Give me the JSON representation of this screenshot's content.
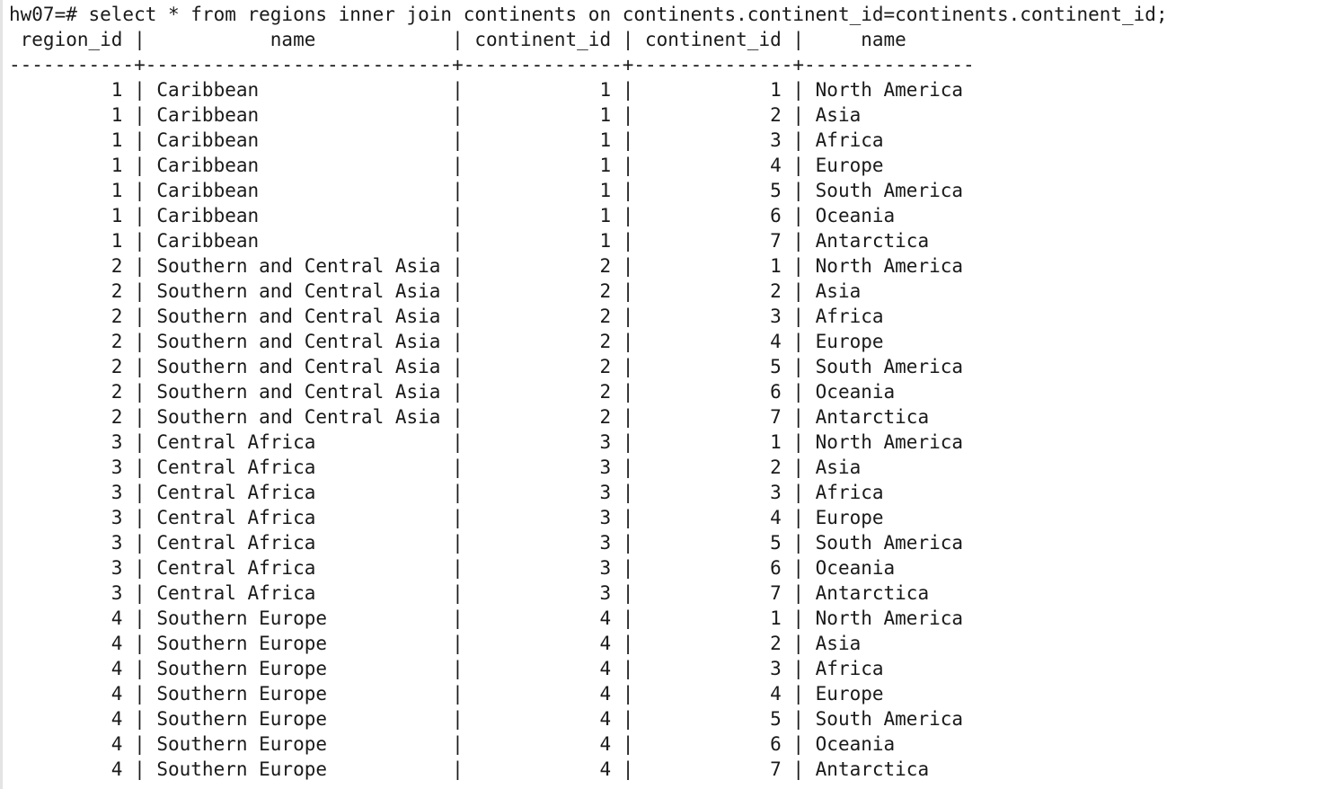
{
  "terminal": {
    "prompt": "hw07=# select * from regions inner join continents on continents.continent_id=continents.continent_id;",
    "header_row": " region_id |           name            | continent_id | continent_id |     name",
    "separator_row": "-----------+---------------------------+--------------+--------------+---------------"
  },
  "result": {
    "columns": [
      "region_id",
      "name",
      "continent_id",
      "continent_id",
      "name"
    ],
    "rows": [
      [
        1,
        "Caribbean",
        1,
        1,
        "North America"
      ],
      [
        1,
        "Caribbean",
        1,
        2,
        "Asia"
      ],
      [
        1,
        "Caribbean",
        1,
        3,
        "Africa"
      ],
      [
        1,
        "Caribbean",
        1,
        4,
        "Europe"
      ],
      [
        1,
        "Caribbean",
        1,
        5,
        "South America"
      ],
      [
        1,
        "Caribbean",
        1,
        6,
        "Oceania"
      ],
      [
        1,
        "Caribbean",
        1,
        7,
        "Antarctica"
      ],
      [
        2,
        "Southern and Central Asia",
        2,
        1,
        "North America"
      ],
      [
        2,
        "Southern and Central Asia",
        2,
        2,
        "Asia"
      ],
      [
        2,
        "Southern and Central Asia",
        2,
        3,
        "Africa"
      ],
      [
        2,
        "Southern and Central Asia",
        2,
        4,
        "Europe"
      ],
      [
        2,
        "Southern and Central Asia",
        2,
        5,
        "South America"
      ],
      [
        2,
        "Southern and Central Asia",
        2,
        6,
        "Oceania"
      ],
      [
        2,
        "Southern and Central Asia",
        2,
        7,
        "Antarctica"
      ],
      [
        3,
        "Central Africa",
        3,
        1,
        "North America"
      ],
      [
        3,
        "Central Africa",
        3,
        2,
        "Asia"
      ],
      [
        3,
        "Central Africa",
        3,
        3,
        "Africa"
      ],
      [
        3,
        "Central Africa",
        3,
        4,
        "Europe"
      ],
      [
        3,
        "Central Africa",
        3,
        5,
        "South America"
      ],
      [
        3,
        "Central Africa",
        3,
        6,
        "Oceania"
      ],
      [
        3,
        "Central Africa",
        3,
        7,
        "Antarctica"
      ],
      [
        4,
        "Southern Europe",
        4,
        1,
        "North America"
      ],
      [
        4,
        "Southern Europe",
        4,
        2,
        "Asia"
      ],
      [
        4,
        "Southern Europe",
        4,
        3,
        "Africa"
      ],
      [
        4,
        "Southern Europe",
        4,
        4,
        "Europe"
      ],
      [
        4,
        "Southern Europe",
        4,
        5,
        "South America"
      ],
      [
        4,
        "Southern Europe",
        4,
        6,
        "Oceania"
      ],
      [
        4,
        "Southern Europe",
        4,
        7,
        "Antarctica"
      ]
    ]
  }
}
